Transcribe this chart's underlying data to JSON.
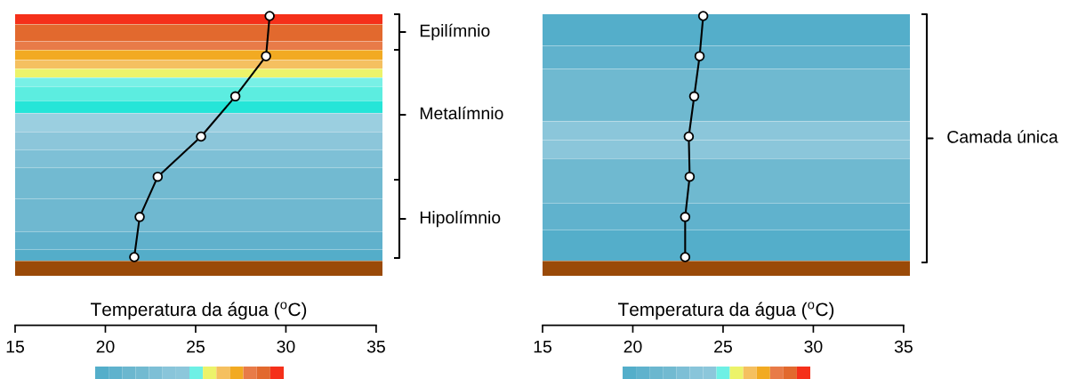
{
  "chart_data": [
    {
      "type": "line",
      "orientation": "horizontal",
      "xlabel": "Temperatura da água ($^{o}$C)",
      "xlim": [
        15,
        35.35
      ],
      "xticks": [
        15,
        20,
        25,
        30,
        35
      ],
      "marker": "circle",
      "line_style": "solid",
      "categories": [
        null,
        null,
        null,
        null,
        null,
        null,
        null
      ],
      "series": [
        {
          "color": "#000000",
          "values": [
            29.1,
            28.9,
            27.2,
            25.3,
            22.9,
            21.9,
            21.6
          ]
        }
      ],
      "annotations": [
        "Epilímnio",
        "Metalímnio",
        "Hipolímnio"
      ]
    },
    {
      "type": "line",
      "orientation": "horizontal",
      "xlabel": "Temperatura da água ($^{o}$C)",
      "xlim": [
        15,
        35.35
      ],
      "xticks": [
        15,
        20,
        25,
        30,
        35
      ],
      "marker": "circle",
      "line_style": "solid",
      "categories": [
        null,
        null,
        null,
        null,
        null,
        null,
        null
      ],
      "series": [
        {
          "color": "#000000",
          "values": [
            23.9,
            23.7,
            23.4,
            23.1,
            23.15,
            22.9,
            22.9
          ]
        }
      ],
      "annotations": [
        "Camada única"
      ]
    }
  ]
}
